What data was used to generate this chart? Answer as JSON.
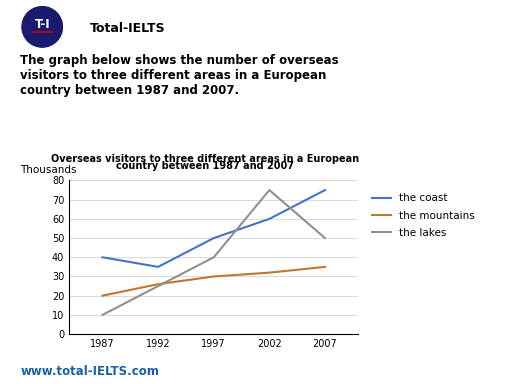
{
  "title_line1": "Overseas visitors to three different areas in a European",
  "title_line2": "country between 1987 and 2007",
  "ylabel": "Thousands",
  "years": [
    1987,
    1992,
    1997,
    2002,
    2007
  ],
  "coast": [
    40,
    35,
    50,
    60,
    75
  ],
  "mountains": [
    20,
    26,
    30,
    32,
    35
  ],
  "lakes": [
    10,
    25,
    40,
    75,
    50
  ],
  "coast_color": "#4472C4",
  "mountains_color": "#C07830",
  "lakes_color": "#909090",
  "ylim": [
    0,
    80
  ],
  "yticks": [
    0,
    10,
    20,
    30,
    40,
    50,
    60,
    70,
    80
  ],
  "xticks": [
    1987,
    1992,
    1997,
    2002,
    2007
  ],
  "legend_labels": [
    "the coast",
    "the mountains",
    "the lakes"
  ],
  "bg_color": "#ffffff",
  "header_text": "Total-IELTS",
  "logo_label": "T-I",
  "logo_bg": "#1a1a6e",
  "prompt_line1": "The graph below shows the number of overseas",
  "prompt_line2": "visitors to three different areas in a European",
  "prompt_line3": "country between 1987 and 2007.",
  "footer_text": "www.total-IELTS.com",
  "footer_color": "#1a5fa8"
}
